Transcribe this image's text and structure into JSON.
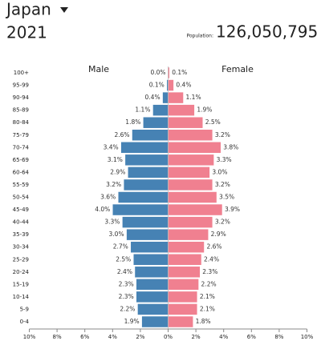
{
  "chart_data": {
    "type": "pyramid",
    "title": "Japan",
    "subtitle": "2021",
    "population_label": "Population:",
    "population": "126,050,795",
    "categories": [
      "100+",
      "95-99",
      "90-94",
      "85-89",
      "80-84",
      "75-79",
      "70-74",
      "65-69",
      "60-64",
      "55-59",
      "50-54",
      "45-49",
      "40-44",
      "35-39",
      "30-34",
      "25-29",
      "20-24",
      "15-19",
      "10-14",
      "5-9",
      "0-4"
    ],
    "series": [
      {
        "name": "Male",
        "side": "left",
        "color": "#4682b4",
        "values": [
          0.0,
          0.1,
          0.4,
          1.1,
          1.8,
          2.6,
          3.4,
          3.1,
          2.9,
          3.2,
          3.6,
          4.0,
          3.3,
          3.0,
          2.7,
          2.5,
          2.4,
          2.3,
          2.3,
          2.2,
          1.9
        ],
        "value_labels": [
          "0.0%",
          "0.1%",
          "0.4%",
          "1.1%",
          "1.8%",
          "2.6%",
          "3.4%",
          "3.1%",
          "2.9%",
          "3.2%",
          "3.6%",
          "4.0%",
          "3.3%",
          "3.0%",
          "2.7%",
          "2.5%",
          "2.4%",
          "2.3%",
          "2.3%",
          "2.2%",
          "1.9%"
        ]
      },
      {
        "name": "Female",
        "side": "right",
        "color": "#f08090",
        "values": [
          0.1,
          0.4,
          1.1,
          1.9,
          2.5,
          3.2,
          3.8,
          3.3,
          3.0,
          3.2,
          3.5,
          3.9,
          3.2,
          2.9,
          2.6,
          2.4,
          2.3,
          2.2,
          2.1,
          2.1,
          1.8
        ],
        "value_labels": [
          "0.1%",
          "0.4%",
          "1.1%",
          "1.9%",
          "2.5%",
          "3.2%",
          "3.8%",
          "3.3%",
          "3.0%",
          "3.2%",
          "3.5%",
          "3.9%",
          "3.2%",
          "2.9%",
          "2.6%",
          "2.4%",
          "2.3%",
          "2.2%",
          "2.1%",
          "2.1%",
          "1.8%"
        ]
      }
    ],
    "xlim": [
      0,
      10
    ],
    "xticks": [
      {
        "value": 0,
        "label": "0%"
      },
      {
        "value": 2,
        "label": "2%"
      },
      {
        "value": 4,
        "label": "4%"
      },
      {
        "value": 6,
        "label": "6%"
      },
      {
        "value": 8,
        "label": "8%"
      },
      {
        "value": 10,
        "label": "10%"
      }
    ]
  }
}
